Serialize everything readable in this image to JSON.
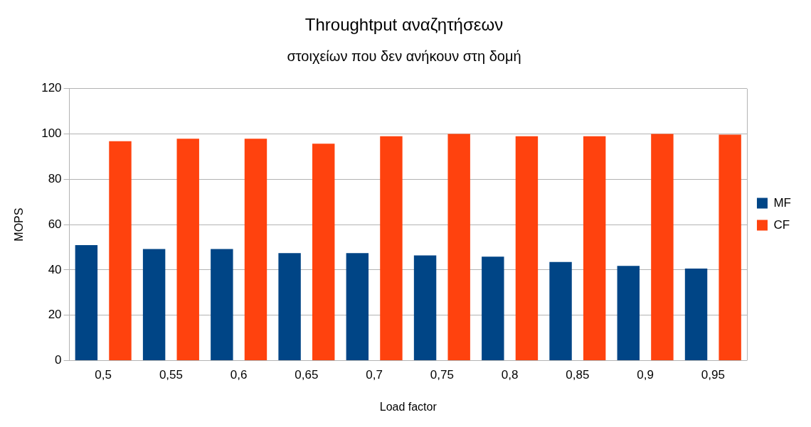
{
  "chart_data": {
    "type": "bar",
    "title": "Throughtput αναζητήσεων",
    "subtitle": "στοιχείων που δεν ανήκουν στη δομή",
    "xlabel": "Load factor",
    "ylabel": "MOPS",
    "categories": [
      "0,5",
      "0,55",
      "0,6",
      "0,65",
      "0,7",
      "0,75",
      "0,8",
      "0,85",
      "0,9",
      "0,95"
    ],
    "series": [
      {
        "name": "MF",
        "color": "#004586",
        "values": [
          50.9,
          49.2,
          49.2,
          47.4,
          47.4,
          46.4,
          45.8,
          43.5,
          41.8,
          40.6
        ]
      },
      {
        "name": "CF",
        "color": "#ff420e",
        "values": [
          96.8,
          97.9,
          97.9,
          95.7,
          99,
          100,
          99,
          99,
          100,
          99.7
        ]
      }
    ],
    "ylim": [
      0,
      120
    ],
    "yticks": [
      0,
      20,
      40,
      60,
      80,
      100,
      120
    ],
    "grid": "y",
    "legend": "right"
  }
}
